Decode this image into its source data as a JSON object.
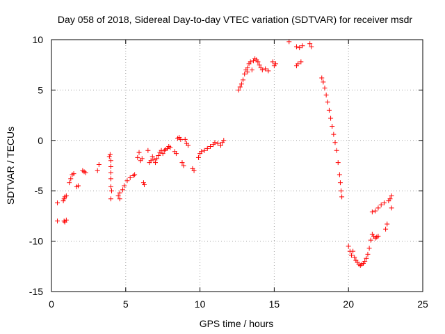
{
  "chart_data": {
    "type": "scatter",
    "title": "Day 058 of 2018, Sidereal Day-to-day VTEC variation (SDTVAR) for receiver msdr",
    "xlabel": "GPS time / hours",
    "ylabel": "SDTVAR / TECUs",
    "xlim": [
      0,
      25
    ],
    "ylim": [
      -15,
      10
    ],
    "xticks": [
      0,
      5,
      10,
      15,
      20,
      25
    ],
    "yticks": [
      -15,
      -10,
      -5,
      0,
      5,
      10
    ],
    "xtick_labels": [
      "0",
      "5",
      "10",
      "15",
      "20",
      "25"
    ],
    "ytick_labels": [
      "-15",
      "-10",
      "-5",
      "0",
      "5",
      "10"
    ],
    "grid": true,
    "marker": "+",
    "color": "#ff0000",
    "series": [
      {
        "name": "SDTVAR",
        "points": [
          [
            0.4,
            -6.2
          ],
          [
            0.4,
            -8.0
          ],
          [
            0.8,
            -6.0
          ],
          [
            0.85,
            -5.8
          ],
          [
            0.9,
            -5.6
          ],
          [
            1.0,
            -5.5
          ],
          [
            0.85,
            -8.0
          ],
          [
            0.9,
            -8.1
          ],
          [
            1.0,
            -7.9
          ],
          [
            1.2,
            -4.2
          ],
          [
            1.3,
            -3.8
          ],
          [
            1.4,
            -3.4
          ],
          [
            1.5,
            -3.3
          ],
          [
            1.7,
            -4.6
          ],
          [
            1.8,
            -4.5
          ],
          [
            2.1,
            -3.0
          ],
          [
            2.2,
            -3.1
          ],
          [
            2.3,
            -3.2
          ],
          [
            3.1,
            -3.0
          ],
          [
            3.2,
            -2.4
          ],
          [
            3.9,
            -1.6
          ],
          [
            3.95,
            -1.4
          ],
          [
            4.0,
            -2.0
          ],
          [
            4.0,
            -2.6
          ],
          [
            4.0,
            -3.2
          ],
          [
            4.0,
            -3.8
          ],
          [
            4.0,
            -4.6
          ],
          [
            4.05,
            -5.0
          ],
          [
            4.0,
            -5.8
          ],
          [
            4.5,
            -5.5
          ],
          [
            4.6,
            -5.2
          ],
          [
            4.6,
            -5.8
          ],
          [
            4.8,
            -4.9
          ],
          [
            4.9,
            -4.5
          ],
          [
            5.1,
            -4.0
          ],
          [
            5.3,
            -3.7
          ],
          [
            5.5,
            -3.5
          ],
          [
            5.6,
            -3.4
          ],
          [
            5.8,
            -1.7
          ],
          [
            5.9,
            -1.2
          ],
          [
            6.0,
            -2.0
          ],
          [
            6.1,
            -1.8
          ],
          [
            6.2,
            -4.2
          ],
          [
            6.25,
            -4.4
          ],
          [
            6.5,
            -1.0
          ],
          [
            6.6,
            -2.2
          ],
          [
            6.7,
            -2.0
          ],
          [
            6.8,
            -1.6
          ],
          [
            6.9,
            -1.9
          ],
          [
            7.0,
            -2.2
          ],
          [
            7.1,
            -1.8
          ],
          [
            7.2,
            -1.5
          ],
          [
            7.3,
            -1.2
          ],
          [
            7.4,
            -1.0
          ],
          [
            7.5,
            -1.3
          ],
          [
            7.6,
            -1.0
          ],
          [
            7.7,
            -0.9
          ],
          [
            7.8,
            -0.8
          ],
          [
            7.9,
            -0.6
          ],
          [
            8.0,
            -0.7
          ],
          [
            8.3,
            -1.1
          ],
          [
            8.4,
            -1.3
          ],
          [
            8.5,
            0.2
          ],
          [
            8.6,
            0.3
          ],
          [
            8.7,
            0.1
          ],
          [
            8.8,
            -2.2
          ],
          [
            8.9,
            -2.5
          ],
          [
            9.0,
            0.1
          ],
          [
            9.1,
            -0.3
          ],
          [
            9.2,
            -0.5
          ],
          [
            9.5,
            -2.8
          ],
          [
            9.6,
            -3.0
          ],
          [
            9.9,
            -1.7
          ],
          [
            10.0,
            -1.3
          ],
          [
            10.1,
            -1.1
          ],
          [
            10.3,
            -1.0
          ],
          [
            10.5,
            -0.8
          ],
          [
            10.7,
            -0.6
          ],
          [
            10.9,
            -0.4
          ],
          [
            11.0,
            -0.2
          ],
          [
            11.2,
            -0.3
          ],
          [
            11.4,
            -0.5
          ],
          [
            11.5,
            -0.2
          ],
          [
            11.6,
            0.0
          ],
          [
            12.6,
            5.0
          ],
          [
            12.7,
            5.3
          ],
          [
            12.8,
            5.6
          ],
          [
            12.9,
            6.0
          ],
          [
            13.0,
            6.6
          ],
          [
            13.1,
            7.0
          ],
          [
            13.2,
            7.2
          ],
          [
            13.3,
            7.6
          ],
          [
            13.4,
            7.8
          ],
          [
            13.2,
            6.8
          ],
          [
            13.5,
            7.0
          ],
          [
            13.6,
            7.9
          ],
          [
            13.7,
            8.1
          ],
          [
            13.8,
            8.0
          ],
          [
            13.9,
            7.8
          ],
          [
            14.0,
            7.5
          ],
          [
            14.1,
            7.2
          ],
          [
            14.2,
            7.0
          ],
          [
            14.4,
            7.1
          ],
          [
            14.6,
            6.9
          ],
          [
            14.9,
            7.8
          ],
          [
            15.0,
            7.4
          ],
          [
            15.1,
            7.6
          ],
          [
            16.0,
            9.8
          ],
          [
            16.5,
            9.3
          ],
          [
            16.7,
            9.2
          ],
          [
            16.9,
            9.4
          ],
          [
            16.5,
            7.4
          ],
          [
            16.6,
            7.6
          ],
          [
            16.8,
            7.8
          ],
          [
            17.4,
            9.6
          ],
          [
            17.5,
            9.3
          ],
          [
            18.2,
            6.2
          ],
          [
            18.3,
            5.8
          ],
          [
            18.4,
            5.2
          ],
          [
            18.5,
            4.5
          ],
          [
            18.6,
            3.8
          ],
          [
            18.7,
            3.0
          ],
          [
            18.8,
            2.2
          ],
          [
            18.9,
            1.4
          ],
          [
            19.0,
            0.6
          ],
          [
            19.1,
            -0.2
          ],
          [
            19.2,
            -1.0
          ],
          [
            19.3,
            -2.2
          ],
          [
            19.4,
            -3.4
          ],
          [
            19.45,
            -4.2
          ],
          [
            19.5,
            -5.0
          ],
          [
            19.55,
            -5.6
          ],
          [
            20.0,
            -10.5
          ],
          [
            20.1,
            -11.0
          ],
          [
            20.2,
            -11.4
          ],
          [
            20.3,
            -11.0
          ],
          [
            20.4,
            -11.6
          ],
          [
            20.5,
            -11.9
          ],
          [
            20.6,
            -12.1
          ],
          [
            20.7,
            -12.3
          ],
          [
            20.8,
            -12.4
          ],
          [
            20.9,
            -12.3
          ],
          [
            21.0,
            -12.2
          ],
          [
            21.1,
            -12.0
          ],
          [
            21.2,
            -11.7
          ],
          [
            21.3,
            -11.3
          ],
          [
            21.4,
            -10.7
          ],
          [
            21.5,
            -9.9
          ],
          [
            21.6,
            -9.3
          ],
          [
            21.7,
            -9.5
          ],
          [
            21.8,
            -9.7
          ],
          [
            21.9,
            -9.6
          ],
          [
            22.0,
            -9.5
          ],
          [
            21.6,
            -7.1
          ],
          [
            21.8,
            -7.0
          ],
          [
            22.0,
            -6.7
          ],
          [
            22.2,
            -6.4
          ],
          [
            22.4,
            -6.2
          ],
          [
            22.5,
            -8.8
          ],
          [
            22.6,
            -8.3
          ],
          [
            22.7,
            -6.0
          ],
          [
            22.8,
            -5.8
          ],
          [
            22.9,
            -5.5
          ],
          [
            22.9,
            -6.7
          ]
        ]
      }
    ]
  }
}
